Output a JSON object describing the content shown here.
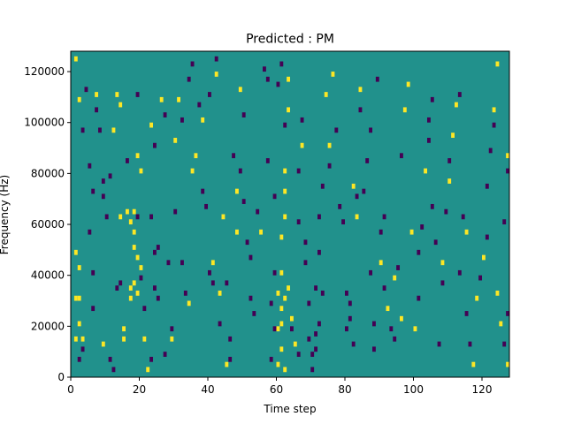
{
  "chart_data": {
    "type": "heatmap",
    "title": "Predicted : PM",
    "xlabel": "Time step",
    "ylabel": "Frequency (Hz)",
    "xlim": [
      0,
      128
    ],
    "ylim": [
      0,
      128000
    ],
    "xticks": [
      0,
      20,
      40,
      60,
      80,
      100,
      120
    ],
    "yticks": [
      0,
      20000,
      40000,
      60000,
      80000,
      100000,
      120000
    ],
    "value_levels": [
      0,
      1,
      2
    ],
    "colormap": {
      "0": "#440154",
      "1": "#21918c",
      "2": "#fde725"
    },
    "background_level": 1,
    "grid": false,
    "legend": "none",
    "cells": [
      [
        1,
        124000,
        2
      ],
      [
        2,
        108000,
        2
      ],
      [
        1,
        48000,
        2
      ],
      [
        2,
        42000,
        2
      ],
      [
        1,
        30000,
        2
      ],
      [
        2,
        30000,
        2
      ],
      [
        1,
        14000,
        2
      ],
      [
        2,
        20000,
        2
      ],
      [
        3,
        14000,
        2
      ],
      [
        2,
        6000,
        0
      ],
      [
        3,
        10000,
        0
      ],
      [
        3,
        96000,
        0
      ],
      [
        4,
        112000,
        0
      ],
      [
        5,
        56000,
        0
      ],
      [
        6,
        72000,
        0
      ],
      [
        5,
        82000,
        0
      ],
      [
        7,
        104000,
        0
      ],
      [
        6,
        40000,
        0
      ],
      [
        6,
        26000,
        0
      ],
      [
        7,
        110000,
        2
      ],
      [
        8,
        96000,
        0
      ],
      [
        9,
        76000,
        0
      ],
      [
        9,
        70000,
        0
      ],
      [
        9,
        12000,
        2
      ],
      [
        10,
        62000,
        0
      ],
      [
        11,
        6000,
        0
      ],
      [
        12,
        2000,
        0
      ],
      [
        11,
        78000,
        0
      ],
      [
        12,
        96000,
        2
      ],
      [
        13,
        110000,
        2
      ],
      [
        14,
        106000,
        2
      ],
      [
        13,
        34000,
        0
      ],
      [
        14,
        36000,
        0
      ],
      [
        14,
        62000,
        2
      ],
      [
        15,
        18000,
        2
      ],
      [
        15,
        14000,
        2
      ],
      [
        16,
        64000,
        2
      ],
      [
        16,
        84000,
        0
      ],
      [
        17,
        60000,
        2
      ],
      [
        18,
        56000,
        2
      ],
      [
        17,
        30000,
        2
      ],
      [
        18,
        36000,
        2
      ],
      [
        19,
        32000,
        2
      ],
      [
        17,
        34000,
        2
      ],
      [
        18,
        50000,
        2
      ],
      [
        19,
        46000,
        2
      ],
      [
        20,
        38000,
        0
      ],
      [
        19,
        86000,
        2
      ],
      [
        20,
        80000,
        2
      ],
      [
        21,
        14000,
        2
      ],
      [
        21,
        26000,
        0
      ],
      [
        18,
        64000,
        2
      ],
      [
        19,
        62000,
        0
      ],
      [
        19,
        110000,
        0
      ],
      [
        20,
        42000,
        2
      ],
      [
        22,
        2000,
        2
      ],
      [
        23,
        6000,
        0
      ],
      [
        23,
        62000,
        0
      ],
      [
        23,
        98000,
        2
      ],
      [
        24,
        90000,
        0
      ],
      [
        24,
        48000,
        0
      ],
      [
        25,
        50000,
        0
      ],
      [
        24,
        34000,
        0
      ],
      [
        25,
        30000,
        0
      ],
      [
        26,
        108000,
        2
      ],
      [
        27,
        8000,
        0
      ],
      [
        27,
        102000,
        0
      ],
      [
        28,
        44000,
        0
      ],
      [
        29,
        14000,
        2
      ],
      [
        29,
        18000,
        0
      ],
      [
        30,
        64000,
        0
      ],
      [
        30,
        92000,
        2
      ],
      [
        31,
        108000,
        2
      ],
      [
        32,
        100000,
        0
      ],
      [
        32,
        44000,
        0
      ],
      [
        33,
        32000,
        0
      ],
      [
        34,
        28000,
        2
      ],
      [
        34,
        116000,
        0
      ],
      [
        35,
        122000,
        0
      ],
      [
        35,
        80000,
        2
      ],
      [
        36,
        86000,
        2
      ],
      [
        37,
        106000,
        0
      ],
      [
        38,
        100000,
        2
      ],
      [
        38,
        72000,
        0
      ],
      [
        39,
        66000,
        0
      ],
      [
        40,
        40000,
        0
      ],
      [
        40,
        110000,
        0
      ],
      [
        41,
        44000,
        2
      ],
      [
        41,
        36000,
        0
      ],
      [
        42,
        118000,
        2
      ],
      [
        42,
        124000,
        0
      ],
      [
        43,
        32000,
        2
      ],
      [
        43,
        20000,
        0
      ],
      [
        44,
        62000,
        2
      ],
      [
        45,
        36000,
        0
      ],
      [
        45,
        4000,
        2
      ],
      [
        46,
        14000,
        0
      ],
      [
        46,
        6000,
        0
      ],
      [
        47,
        86000,
        0
      ],
      [
        48,
        72000,
        2
      ],
      [
        48,
        56000,
        2
      ],
      [
        49,
        80000,
        0
      ],
      [
        50,
        68000,
        0
      ],
      [
        49,
        112000,
        2
      ],
      [
        50,
        102000,
        0
      ],
      [
        51,
        52000,
        0
      ],
      [
        52,
        46000,
        0
      ],
      [
        52,
        30000,
        0
      ],
      [
        53,
        24000,
        0
      ],
      [
        54,
        64000,
        0
      ],
      [
        55,
        56000,
        2
      ],
      [
        56,
        120000,
        0
      ],
      [
        57,
        116000,
        0
      ],
      [
        58,
        28000,
        0
      ],
      [
        58,
        6000,
        0
      ],
      [
        57,
        84000,
        0
      ],
      [
        59,
        70000,
        0
      ],
      [
        59,
        40000,
        0
      ],
      [
        59,
        18000,
        0
      ],
      [
        60,
        114000,
        0
      ],
      [
        61,
        122000,
        0
      ],
      [
        60,
        18000,
        2
      ],
      [
        61,
        26000,
        2
      ],
      [
        60,
        32000,
        2
      ],
      [
        61,
        40000,
        2
      ],
      [
        60,
        4000,
        2
      ],
      [
        61,
        10000,
        2
      ],
      [
        62,
        2000,
        2
      ],
      [
        61,
        20000,
        2
      ],
      [
        62,
        30000,
        2
      ],
      [
        61,
        54000,
        2
      ],
      [
        62,
        62000,
        2
      ],
      [
        62,
        72000,
        2
      ],
      [
        62,
        80000,
        2
      ],
      [
        62,
        98000,
        0
      ],
      [
        63,
        104000,
        2
      ],
      [
        63,
        116000,
        2
      ],
      [
        64,
        22000,
        2
      ],
      [
        63,
        34000,
        2
      ],
      [
        64,
        18000,
        0
      ],
      [
        65,
        12000,
        2
      ],
      [
        66,
        8000,
        0
      ],
      [
        66,
        60000,
        0
      ],
      [
        66,
        80000,
        0
      ],
      [
        67,
        90000,
        2
      ],
      [
        67,
        100000,
        0
      ],
      [
        68,
        44000,
        0
      ],
      [
        68,
        52000,
        0
      ],
      [
        69,
        28000,
        0
      ],
      [
        69,
        14000,
        0
      ],
      [
        70,
        2000,
        0
      ],
      [
        70,
        8000,
        0
      ],
      [
        71,
        10000,
        0
      ],
      [
        71,
        16000,
        0
      ],
      [
        72,
        20000,
        0
      ],
      [
        71,
        34000,
        0
      ],
      [
        72,
        48000,
        0
      ],
      [
        72,
        62000,
        0
      ],
      [
        73,
        32000,
        0
      ],
      [
        73,
        74000,
        0
      ],
      [
        74,
        110000,
        2
      ],
      [
        75,
        82000,
        0
      ],
      [
        75,
        90000,
        2
      ],
      [
        76,
        118000,
        2
      ],
      [
        77,
        96000,
        0
      ],
      [
        78,
        66000,
        0
      ],
      [
        79,
        60000,
        0
      ],
      [
        80,
        32000,
        0
      ],
      [
        80,
        18000,
        0
      ],
      [
        81,
        22000,
        0
      ],
      [
        81,
        28000,
        0
      ],
      [
        82,
        12000,
        0
      ],
      [
        82,
        74000,
        2
      ],
      [
        83,
        70000,
        0
      ],
      [
        83,
        62000,
        2
      ],
      [
        84,
        112000,
        2
      ],
      [
        84,
        104000,
        0
      ],
      [
        85,
        72000,
        0
      ],
      [
        86,
        84000,
        0
      ],
      [
        87,
        96000,
        0
      ],
      [
        87,
        40000,
        0
      ],
      [
        88,
        20000,
        0
      ],
      [
        88,
        10000,
        0
      ],
      [
        89,
        116000,
        0
      ],
      [
        90,
        44000,
        2
      ],
      [
        90,
        56000,
        0
      ],
      [
        91,
        62000,
        0
      ],
      [
        91,
        34000,
        0
      ],
      [
        92,
        26000,
        2
      ],
      [
        93,
        18000,
        0
      ],
      [
        94,
        14000,
        0
      ],
      [
        94,
        38000,
        2
      ],
      [
        95,
        42000,
        0
      ],
      [
        96,
        22000,
        2
      ],
      [
        96,
        86000,
        0
      ],
      [
        97,
        104000,
        2
      ],
      [
        98,
        114000,
        2
      ],
      [
        99,
        56000,
        2
      ],
      [
        100,
        18000,
        2
      ],
      [
        101,
        30000,
        0
      ],
      [
        101,
        48000,
        0
      ],
      [
        102,
        58000,
        0
      ],
      [
        103,
        80000,
        2
      ],
      [
        104,
        92000,
        0
      ],
      [
        104,
        100000,
        0
      ],
      [
        105,
        108000,
        0
      ],
      [
        105,
        66000,
        0
      ],
      [
        106,
        52000,
        0
      ],
      [
        107,
        12000,
        0
      ],
      [
        108,
        36000,
        0
      ],
      [
        108,
        44000,
        2
      ],
      [
        109,
        64000,
        0
      ],
      [
        110,
        76000,
        2
      ],
      [
        110,
        84000,
        0
      ],
      [
        111,
        94000,
        2
      ],
      [
        112,
        106000,
        2
      ],
      [
        113,
        110000,
        0
      ],
      [
        113,
        40000,
        0
      ],
      [
        114,
        62000,
        0
      ],
      [
        115,
        56000,
        2
      ],
      [
        115,
        24000,
        0
      ],
      [
        116,
        12000,
        0
      ],
      [
        117,
        4000,
        2
      ],
      [
        118,
        30000,
        2
      ],
      [
        119,
        38000,
        0
      ],
      [
        120,
        46000,
        2
      ],
      [
        121,
        54000,
        0
      ],
      [
        121,
        74000,
        0
      ],
      [
        122,
        88000,
        0
      ],
      [
        123,
        98000,
        0
      ],
      [
        123,
        104000,
        2
      ],
      [
        124,
        122000,
        2
      ],
      [
        124,
        32000,
        2
      ],
      [
        125,
        20000,
        2
      ],
      [
        126,
        12000,
        0
      ],
      [
        126,
        60000,
        0
      ],
      [
        127,
        80000,
        0
      ],
      [
        127,
        86000,
        2
      ],
      [
        127,
        4000,
        2
      ],
      [
        127,
        24000,
        0
      ]
    ]
  }
}
